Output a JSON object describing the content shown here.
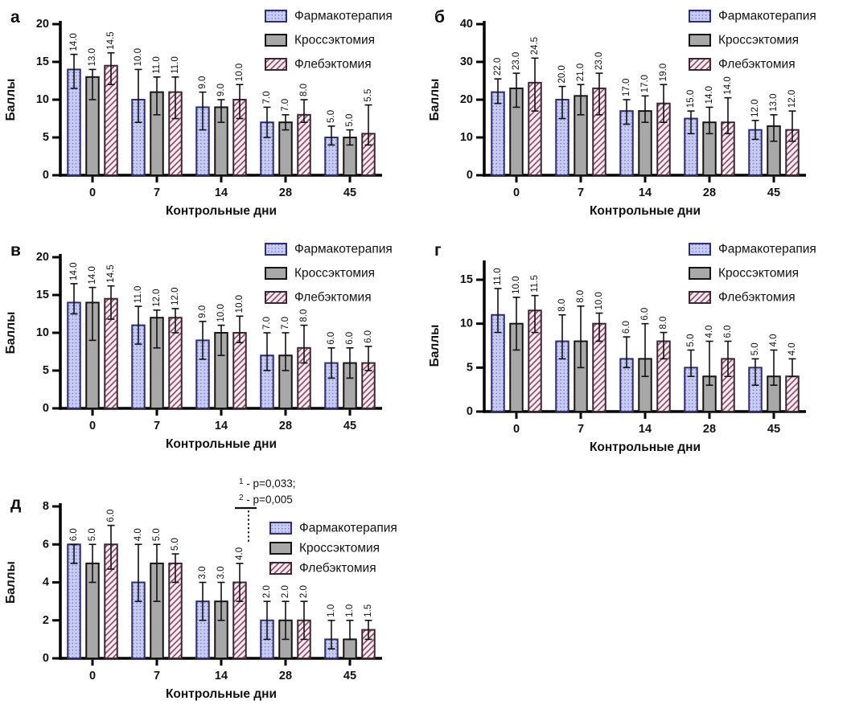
{
  "figure": {
    "description": "Five bar-chart panels comparing three treatments over control days",
    "panels": [
      "а",
      "б",
      "в",
      "г",
      "д"
    ],
    "shared": {
      "ylabel": "Баллы",
      "xlabel": "Контрольные дни",
      "categories": [
        "0",
        "7",
        "14",
        "28",
        "45"
      ],
      "legend": [
        "Фармакотерапия",
        "Кроссэктомия",
        "Флебэктомия"
      ]
    }
  },
  "styles": {
    "background": "#ffffff",
    "axis_color": "#000000",
    "error_bar_color": "#111111",
    "text_color": "#111111",
    "series_styles": [
      {
        "name": "Фармакотерапия",
        "pattern": "dots",
        "fill": "#c9ccf2",
        "pattern_color": "#767ac9",
        "border": "#2f2f6e"
      },
      {
        "name": "Кроссэктомия",
        "pattern": "solid",
        "fill": "#a8a8a8",
        "pattern_color": "#a8a8a8",
        "border": "#151515"
      },
      {
        "name": "Флебэктомия",
        "pattern": "diagonal-hatch",
        "fill": "#f8eef3",
        "pattern_color": "#8c4964",
        "border": "#3c2633"
      }
    ]
  },
  "chart_data": [
    {
      "type": "bar",
      "panel_label": "а",
      "ylabel": "Баллы",
      "xlabel": "Контрольные дни",
      "categories": [
        "0",
        "7",
        "14",
        "28",
        "45"
      ],
      "ylim": [
        0,
        20
      ],
      "yticks": [
        0,
        5,
        10,
        15,
        20
      ],
      "grid": false,
      "legend_position": "top-right",
      "series": [
        {
          "name": "Фармакотерапия",
          "values": [
            14,
            10,
            9,
            7,
            5
          ],
          "labels": [
            "14.0",
            "10.0",
            "9.0",
            "7.0",
            "5.0"
          ],
          "err_lo": [
            11.5,
            7,
            6,
            5,
            4
          ],
          "err_hi": [
            16,
            14,
            11,
            9,
            6.5
          ]
        },
        {
          "name": "Кроссэктомия",
          "values": [
            13,
            11,
            9,
            7,
            5
          ],
          "labels": [
            "13.0",
            "11.0",
            "9.0",
            "7.0",
            "5.0"
          ],
          "err_lo": [
            10,
            8,
            7,
            6,
            4
          ],
          "err_hi": [
            14,
            13,
            10,
            8,
            6
          ]
        },
        {
          "name": "Флебэктомия",
          "values": [
            14.5,
            11,
            10,
            8,
            5.5
          ],
          "labels": [
            "14.5",
            "11.0",
            "10.0",
            "8.0",
            "5.5"
          ],
          "err_lo": [
            12,
            7.5,
            7.5,
            7,
            4
          ],
          "err_hi": [
            16.2,
            13,
            12,
            10,
            9.3
          ]
        }
      ],
      "annotation": null
    },
    {
      "type": "bar",
      "panel_label": "б",
      "ylabel": "Баллы",
      "xlabel": "Контрольные дни",
      "categories": [
        "0",
        "7",
        "14",
        "28",
        "45"
      ],
      "ylim": [
        0,
        40
      ],
      "yticks": [
        0,
        10,
        20,
        30,
        40
      ],
      "grid": false,
      "legend_position": "top-right",
      "series": [
        {
          "name": "Фармакотерапия",
          "values": [
            22,
            20,
            17,
            15,
            12
          ],
          "labels": [
            "22.0",
            "20.0",
            "17.0",
            "15.0",
            "12.0"
          ],
          "err_lo": [
            19,
            15,
            13.5,
            11,
            9.5
          ],
          "err_hi": [
            25.5,
            23.5,
            20,
            17,
            14.5
          ]
        },
        {
          "name": "Кроссэктомия",
          "values": [
            23,
            21,
            17,
            14,
            13
          ],
          "labels": [
            "23.0",
            "21.0",
            "17.0",
            "14.0",
            "13.0"
          ],
          "err_lo": [
            18,
            16,
            14,
            11,
            9
          ],
          "err_hi": [
            27,
            24,
            21,
            18,
            16
          ]
        },
        {
          "name": "Флебэктомия",
          "values": [
            24.5,
            23,
            19,
            14,
            12
          ],
          "labels": [
            "24.5",
            "23.0",
            "19.0",
            "14.0",
            "12.0"
          ],
          "err_lo": [
            17,
            16,
            14,
            11,
            9
          ],
          "err_hi": [
            31,
            27,
            24,
            20.5,
            17
          ]
        }
      ],
      "annotation": null
    },
    {
      "type": "bar",
      "panel_label": "в",
      "ylabel": "Баллы",
      "xlabel": "Контрольные дни",
      "categories": [
        "0",
        "7",
        "14",
        "28",
        "45"
      ],
      "ylim": [
        0,
        20
      ],
      "yticks": [
        0,
        5,
        10,
        15,
        20
      ],
      "grid": false,
      "legend_position": "top-right",
      "series": [
        {
          "name": "Фармакотерапия",
          "values": [
            14,
            11,
            9,
            7,
            6
          ],
          "labels": [
            "14.0",
            "11.0",
            "9.0",
            "7.0",
            "6.0"
          ],
          "err_lo": [
            12.5,
            8.5,
            6.5,
            5,
            4
          ],
          "err_hi": [
            16.5,
            13.5,
            11.5,
            10,
            8
          ]
        },
        {
          "name": "Кроссэктомия",
          "values": [
            14,
            12,
            10,
            7,
            6
          ],
          "labels": [
            "14.0",
            "12.0",
            "10.0",
            "7.0",
            "6.0"
          ],
          "err_lo": [
            9,
            8,
            7,
            5,
            4
          ],
          "err_hi": [
            16,
            13,
            11,
            10,
            8
          ]
        },
        {
          "name": "Флебэктомия",
          "values": [
            14.5,
            12,
            10,
            8,
            6
          ],
          "labels": [
            "14.5",
            "12.0",
            "10.0",
            "8.0",
            "6.0"
          ],
          "err_lo": [
            11.8,
            10,
            8.7,
            6,
            5
          ],
          "err_hi": [
            16.2,
            13.2,
            12.2,
            11,
            8.2
          ]
        }
      ],
      "annotation": null
    },
    {
      "type": "bar",
      "panel_label": "г",
      "ylabel": "Баллы",
      "xlabel": "Контрольные дни",
      "categories": [
        "0",
        "7",
        "14",
        "28",
        "45"
      ],
      "ylim": [
        0,
        15
      ],
      "yticks": [
        0,
        5,
        10,
        15
      ],
      "grid": false,
      "legend_position": "top-right",
      "series": [
        {
          "name": "Фармакотерапия",
          "values": [
            11,
            8,
            6,
            5,
            5
          ],
          "labels": [
            "11.0",
            "8.0",
            "6.0",
            "5.0",
            "5.0"
          ],
          "err_lo": [
            9,
            6,
            5,
            4,
            3
          ],
          "err_hi": [
            14,
            11,
            8.5,
            7,
            6
          ]
        },
        {
          "name": "Кроссэктомия",
          "values": [
            10,
            8,
            6,
            4,
            4
          ],
          "labels": [
            "10.0",
            "8.0",
            "6.0",
            "4.0",
            "4.0"
          ],
          "err_lo": [
            7,
            5,
            4,
            3,
            3
          ],
          "err_hi": [
            13,
            12,
            10,
            8,
            7
          ]
        },
        {
          "name": "Флебэктомия",
          "values": [
            11.5,
            10,
            8,
            6,
            4
          ],
          "labels": [
            "11.5",
            "10.0",
            "8.0",
            "6.0",
            "4.0"
          ],
          "err_lo": [
            9,
            8,
            6,
            4,
            4
          ],
          "err_hi": [
            13.2,
            11.2,
            9,
            8,
            6
          ]
        }
      ],
      "annotation": null
    },
    {
      "type": "bar",
      "panel_label": "д",
      "ylabel": "Баллы",
      "xlabel": "Контрольные дни",
      "categories": [
        "0",
        "7",
        "14",
        "28",
        "45"
      ],
      "ylim": [
        0,
        8
      ],
      "yticks": [
        0,
        2,
        4,
        6,
        8
      ],
      "grid": false,
      "legend_position": "mid-right",
      "series": [
        {
          "name": "Фармакотерапия",
          "values": [
            6,
            4,
            3,
            2,
            1
          ],
          "labels": [
            "6.0",
            "4.0",
            "3.0",
            "2.0",
            "1.0"
          ],
          "err_lo": [
            5,
            3,
            2,
            1,
            0.5
          ],
          "err_hi": [
            6,
            6,
            4,
            3,
            2
          ]
        },
        {
          "name": "Кроссэктомия",
          "values": [
            5,
            5,
            3,
            2,
            1
          ],
          "labels": [
            "5.0",
            "5.0",
            "3.0",
            "2.0",
            "1.0"
          ],
          "err_lo": [
            4,
            3,
            2,
            1,
            1
          ],
          "err_hi": [
            6,
            6,
            4,
            3,
            2
          ]
        },
        {
          "name": "Флебэктомия",
          "values": [
            6,
            5,
            4,
            2,
            1.5
          ],
          "labels": [
            "6.0",
            "5.0",
            "4.0",
            "2.0",
            "1.5"
          ],
          "err_lo": [
            4.7,
            4,
            3,
            1,
            1
          ],
          "err_hi": [
            7,
            5.5,
            5,
            3,
            2
          ]
        }
      ],
      "annotation": {
        "lines": [
          {
            "sup": "1",
            "text": "- p=0,033;"
          },
          {
            "sup": "2",
            "text": "- p=0,005"
          }
        ],
        "target": "day 14, Флебэктомия"
      }
    }
  ]
}
